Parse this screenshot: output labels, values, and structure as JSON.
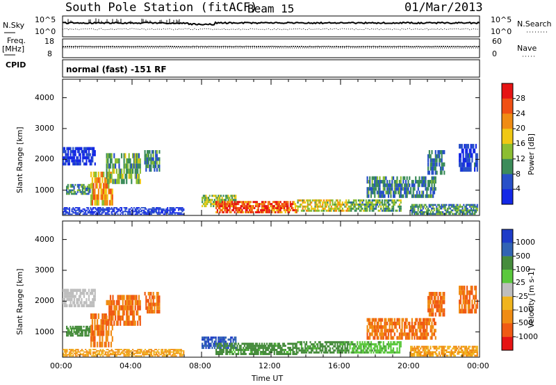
{
  "header": {
    "title": "South Pole Station (fitACF)",
    "beam": "Beam 15",
    "date": "01/Mar/2013"
  },
  "nsky_panel": {
    "left_label": "N.Sky",
    "right_label": "N.Search",
    "left_ticks": [
      "10^5",
      "10^0"
    ],
    "right_ticks": [
      "10^5",
      "10^0"
    ]
  },
  "freq_panel": {
    "left_label_1": "Freq.",
    "left_label_2": "[MHz]",
    "right_label": "Nave",
    "left_ticks": [
      "18",
      "8"
    ],
    "right_ticks": [
      "60",
      "0"
    ]
  },
  "cpid_panel": {
    "label": "CPID",
    "text": "normal (fast) -151 RF"
  },
  "chart_data": [
    {
      "type": "heatmap",
      "name": "power",
      "ylabel": "Slant Range [km]",
      "yticks": [
        1000,
        2000,
        3000,
        4000
      ],
      "ylim": [
        180,
        4600
      ],
      "xlim_hours": [
        0,
        24
      ],
      "xtick_labels": [
        "00:00",
        "04:00",
        "08:00",
        "12:00",
        "16:00",
        "20:00",
        "00:00"
      ],
      "colorbar": {
        "label": "Power [dB]",
        "ticks": [
          "4",
          "8",
          "12",
          "16",
          "20",
          "24",
          "28"
        ],
        "colors": [
          "#1428e6",
          "#2850c8",
          "#3c8c5a",
          "#8cbe32",
          "#f0c814",
          "#f08c14",
          "#f05014",
          "#e61414"
        ]
      },
      "regions": [
        {
          "t0": 0.0,
          "t1": 1.9,
          "r0": 1800,
          "r1": 2400,
          "value": 3
        },
        {
          "t0": 0.2,
          "t1": 1.6,
          "r0": 850,
          "r1": 1200,
          "value": 10
        },
        {
          "t0": 1.6,
          "t1": 2.9,
          "r0": 500,
          "r1": 1600,
          "value": 20
        },
        {
          "t0": 2.5,
          "t1": 4.5,
          "r0": 1200,
          "r1": 2200,
          "value": 12
        },
        {
          "t0": 4.7,
          "t1": 5.6,
          "r0": 1600,
          "r1": 2300,
          "value": 9
        },
        {
          "t0": 0.0,
          "t1": 7.0,
          "r0": 200,
          "r1": 450,
          "value": 4
        },
        {
          "t0": 8.0,
          "t1": 10.0,
          "r0": 450,
          "r1": 850,
          "value": 14
        },
        {
          "t0": 8.8,
          "t1": 13.5,
          "r0": 250,
          "r1": 650,
          "value": 27
        },
        {
          "t0": 13.5,
          "t1": 16.5,
          "r0": 300,
          "r1": 700,
          "value": 17
        },
        {
          "t0": 16.5,
          "t1": 19.5,
          "r0": 300,
          "r1": 700,
          "value": 12
        },
        {
          "t0": 17.5,
          "t1": 21.5,
          "r0": 750,
          "r1": 1450,
          "value": 9
        },
        {
          "t0": 20.0,
          "t1": 23.9,
          "r0": 200,
          "r1": 550,
          "value": 10
        },
        {
          "t0": 21.0,
          "t1": 22.0,
          "r0": 1500,
          "r1": 2300,
          "value": 8
        },
        {
          "t0": 22.8,
          "t1": 23.9,
          "r0": 1600,
          "r1": 2500,
          "value": 5
        }
      ]
    },
    {
      "type": "heatmap",
      "name": "velocity",
      "ylabel": "Slant Range [km]",
      "yticks": [
        1000,
        2000,
        3000,
        4000
      ],
      "ylim": [
        180,
        4600
      ],
      "xlim_hours": [
        0,
        24
      ],
      "xlabel": "Time UT",
      "xtick_labels": [
        "00:00",
        "04:00",
        "08:00",
        "12:00",
        "16:00",
        "20:00",
        "00:00"
      ],
      "colorbar": {
        "label": "Velocity [m s-1]",
        "ticks": [
          "1000",
          "500",
          "100",
          "25",
          "-25",
          "-100",
          "-500",
          "-1000"
        ],
        "colors": [
          "#1e3cc8",
          "#3264b4",
          "#468c3c",
          "#5ac83c",
          "#bebebe",
          "#f0b41e",
          "#f08c14",
          "#f05a14",
          "#e61414"
        ]
      },
      "regions": [
        {
          "t0": 0.0,
          "t1": 1.9,
          "r0": 1800,
          "r1": 2400,
          "value": 0
        },
        {
          "t0": 0.2,
          "t1": 1.6,
          "r0": 850,
          "r1": 1200,
          "value": 80
        },
        {
          "t0": 1.6,
          "t1": 2.9,
          "r0": 500,
          "r1": 1600,
          "value": -300
        },
        {
          "t0": 2.5,
          "t1": 4.5,
          "r0": 1200,
          "r1": 2200,
          "value": -300
        },
        {
          "t0": 4.7,
          "t1": 5.6,
          "r0": 1600,
          "r1": 2300,
          "value": -300
        },
        {
          "t0": 0.0,
          "t1": 7.0,
          "r0": 200,
          "r1": 450,
          "value": -60
        },
        {
          "t0": 8.0,
          "t1": 10.0,
          "r0": 450,
          "r1": 850,
          "value": 700
        },
        {
          "t0": 8.8,
          "t1": 13.5,
          "r0": 250,
          "r1": 650,
          "value": 80
        },
        {
          "t0": 13.5,
          "t1": 16.5,
          "r0": 300,
          "r1": 700,
          "value": 80
        },
        {
          "t0": 16.5,
          "t1": 19.5,
          "r0": 300,
          "r1": 700,
          "value": 50
        },
        {
          "t0": 17.5,
          "t1": 21.5,
          "r0": 750,
          "r1": 1450,
          "value": -300
        },
        {
          "t0": 20.0,
          "t1": 23.9,
          "r0": 200,
          "r1": 550,
          "value": -60
        },
        {
          "t0": 21.0,
          "t1": 22.0,
          "r0": 1500,
          "r1": 2300,
          "value": -300
        },
        {
          "t0": 22.8,
          "t1": 23.9,
          "r0": 1600,
          "r1": 2500,
          "value": -300
        }
      ]
    }
  ]
}
